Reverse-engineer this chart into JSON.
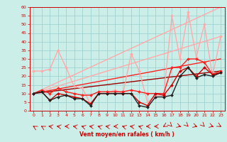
{
  "xlabel": "Vent moyen/en rafales ( km/h )",
  "xlim": [
    -0.5,
    23.5
  ],
  "ylim": [
    0,
    60
  ],
  "yticks": [
    0,
    5,
    10,
    15,
    20,
    25,
    30,
    35,
    40,
    45,
    50,
    55,
    60
  ],
  "xticks": [
    0,
    1,
    2,
    3,
    4,
    5,
    6,
    7,
    8,
    9,
    10,
    11,
    12,
    13,
    14,
    15,
    16,
    17,
    18,
    19,
    20,
    21,
    22,
    23
  ],
  "bg_color": "#cceee8",
  "grid_color": "#99cccc",
  "series": [
    {
      "name": "light_pink_trend",
      "x": [
        0,
        23
      ],
      "y": [
        10,
        60
      ],
      "color": "#ffaaaa",
      "lw": 1.0,
      "marker": null,
      "ms": 0,
      "linestyle": "-",
      "zorder": 2
    },
    {
      "name": "light_pink_lower_trend",
      "x": [
        0,
        23
      ],
      "y": [
        10,
        43
      ],
      "color": "#ffaaaa",
      "lw": 1.0,
      "marker": null,
      "ms": 0,
      "linestyle": "-",
      "zorder": 2
    },
    {
      "name": "red_trend",
      "x": [
        0,
        23
      ],
      "y": [
        10,
        30
      ],
      "color": "#ff2222",
      "lw": 1.0,
      "marker": null,
      "ms": 0,
      "linestyle": "-",
      "zorder": 2
    },
    {
      "name": "dark_red_trend",
      "x": [
        0,
        23
      ],
      "y": [
        10,
        23
      ],
      "color": "#990000",
      "lw": 1.0,
      "marker": null,
      "ms": 0,
      "linestyle": "-",
      "zorder": 2
    },
    {
      "name": "light_pink_zigzag",
      "x": [
        0,
        1,
        2,
        3,
        4,
        5,
        6,
        7,
        8,
        9,
        10,
        11,
        12,
        13,
        14,
        15,
        16,
        17,
        18,
        19,
        20,
        21,
        22,
        23
      ],
      "y": [
        23,
        23,
        24,
        35,
        25,
        14,
        13,
        4,
        10,
        10,
        12,
        10,
        33,
        23,
        5,
        9,
        9,
        55,
        30,
        57,
        31,
        50,
        20,
        43
      ],
      "color": "#ffaaaa",
      "lw": 1.0,
      "marker": "D",
      "ms": 2.0,
      "linestyle": "-",
      "zorder": 3
    },
    {
      "name": "red_zigzag",
      "x": [
        0,
        1,
        2,
        3,
        4,
        5,
        6,
        7,
        8,
        9,
        10,
        11,
        12,
        13,
        14,
        15,
        16,
        17,
        18,
        19,
        20,
        21,
        22,
        23
      ],
      "y": [
        10,
        12,
        10,
        13,
        11,
        10,
        9,
        9,
        11,
        11,
        11,
        11,
        12,
        11,
        10,
        10,
        10,
        25,
        25,
        30,
        30,
        28,
        21,
        23
      ],
      "color": "#ff2222",
      "lw": 1.0,
      "marker": "D",
      "ms": 2.0,
      "linestyle": "-",
      "zorder": 4
    },
    {
      "name": "dark_red_zigzag",
      "x": [
        0,
        1,
        2,
        3,
        4,
        5,
        6,
        7,
        8,
        9,
        10,
        11,
        12,
        13,
        14,
        15,
        16,
        17,
        18,
        19,
        20,
        21,
        22,
        23
      ],
      "y": [
        10,
        11,
        6,
        10,
        9,
        8,
        7,
        4,
        10,
        10,
        10,
        10,
        10,
        5,
        3,
        10,
        9,
        15,
        23,
        25,
        20,
        25,
        21,
        22
      ],
      "color": "#cc0000",
      "lw": 1.0,
      "marker": "D",
      "ms": 2.0,
      "linestyle": "-",
      "zorder": 4
    },
    {
      "name": "black_zigzag",
      "x": [
        0,
        1,
        2,
        3,
        4,
        5,
        6,
        7,
        8,
        9,
        10,
        11,
        12,
        13,
        14,
        15,
        16,
        17,
        18,
        19,
        20,
        21,
        22,
        23
      ],
      "y": [
        10,
        11,
        6,
        8,
        9,
        7,
        7,
        3,
        10,
        10,
        10,
        10,
        10,
        3,
        2,
        8,
        8,
        9,
        20,
        25,
        19,
        21,
        20,
        22
      ],
      "color": "#222222",
      "lw": 1.0,
      "marker": "D",
      "ms": 2.0,
      "linestyle": "-",
      "zorder": 4
    }
  ],
  "wind_x": [
    0,
    1,
    2,
    3,
    4,
    5,
    6,
    7,
    8,
    9,
    10,
    11,
    12,
    13,
    14,
    15,
    16,
    17,
    18,
    19,
    20,
    21,
    22,
    23
  ],
  "wind_dirs": [
    225,
    225,
    255,
    255,
    270,
    255,
    240,
    255,
    240,
    255,
    270,
    240,
    255,
    240,
    270,
    270,
    315,
    30,
    60,
    30,
    60,
    30,
    60,
    45
  ]
}
